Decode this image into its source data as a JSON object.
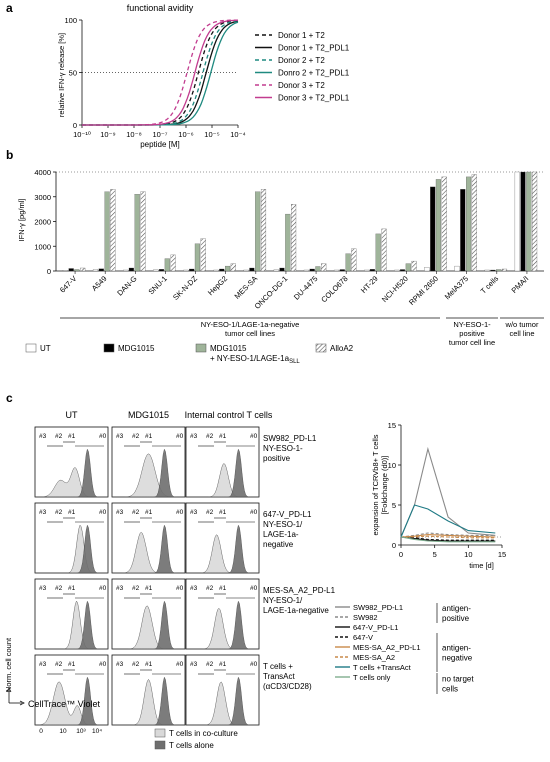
{
  "panel_a": {
    "panel_label": "a",
    "title": "functional avidity",
    "ylabel": "relative IFN-γ release [%]",
    "xlabel": "peptide [M]",
    "x_ticks": [
      "10⁻¹⁰",
      "10⁻⁹",
      "10⁻⁸",
      "10⁻⁷",
      "10⁻⁶",
      "10⁻⁵",
      "10⁻⁴"
    ],
    "y_ticks": [
      "0",
      "50",
      "100"
    ],
    "legend": [
      {
        "label": "Donor 1 + T2",
        "color": "#111111",
        "dash": "4,3"
      },
      {
        "label": "Donor 1 + T2_PDL1",
        "color": "#111111",
        "dash": ""
      },
      {
        "label": "Donor 2 + T2",
        "color": "#1f8a80",
        "dash": "4,3"
      },
      {
        "label": "Donro 2 + T2_PDL1",
        "color": "#1f8a80",
        "dash": ""
      },
      {
        "label": "Donor 3 + T2",
        "color": "#c23c8f",
        "dash": "4,3"
      },
      {
        "label": "Donor 3 + T2_PDL1",
        "color": "#c23c8f",
        "dash": ""
      }
    ]
  },
  "chart_data": [
    {
      "type": "line",
      "title": "functional avidity",
      "xlabel": "peptide [M]",
      "ylabel": "relative IFN-γ release [%]",
      "x_scale": "log",
      "xlim": [
        1e-10,
        0.0001
      ],
      "ylim": [
        0,
        100
      ],
      "reference_line_y": 50,
      "series": [
        {
          "name": "Donor 1 + T2",
          "ec50": 3e-06,
          "hill": 1.6
        },
        {
          "name": "Donor 1 + T2_PDL1",
          "ec50": 6e-06,
          "hill": 1.6
        },
        {
          "name": "Donor 2 + T2",
          "ec50": 4.5e-06,
          "hill": 1.6
        },
        {
          "name": "Donro 2 + T2_PDL1",
          "ec50": 9e-06,
          "hill": 1.6
        },
        {
          "name": "Donor 3 + T2",
          "ec50": 1.1e-06,
          "hill": 1.6
        },
        {
          "name": "Donor 3 + T2_PDL1",
          "ec50": 2.2e-06,
          "hill": 1.6
        }
      ]
    },
    {
      "type": "bar",
      "ylabel": "IFN-γ [pg/ml]",
      "ylim": [
        0,
        4000
      ],
      "y_ticks": [
        0,
        1000,
        2000,
        3000,
        4000
      ],
      "series_names": [
        "UT",
        "MDG1015",
        "MDG1015 + NY-ESO-1/LAGE-1a SLL",
        "AlloA2"
      ],
      "categories": [
        "647-V",
        "A549",
        "DAN-G",
        "SNU-1",
        "SK-N-DZ",
        "HepG2",
        "MES-SA",
        "ONCO-DG-1",
        "DU-4475",
        "COLO678",
        "HT-29",
        "NCI-H520",
        "RPMI 2650",
        "MelA375",
        "T cells",
        "PMA/I"
      ],
      "values": [
        [
          30,
          100,
          60,
          120
        ],
        [
          60,
          90,
          3200,
          3300
        ],
        [
          40,
          120,
          3100,
          3200
        ],
        [
          50,
          70,
          500,
          650
        ],
        [
          40,
          80,
          1100,
          1300
        ],
        [
          40,
          80,
          200,
          300
        ],
        [
          40,
          120,
          3200,
          3300
        ],
        [
          50,
          120,
          2300,
          2700
        ],
        [
          40,
          80,
          180,
          300
        ],
        [
          40,
          60,
          700,
          900
        ],
        [
          40,
          70,
          1500,
          1700
        ],
        [
          40,
          60,
          300,
          400
        ],
        [
          150,
          3400,
          3700,
          3800
        ],
        [
          200,
          3300,
          3800,
          3900
        ],
        [
          40,
          40,
          60,
          80
        ],
        [
          4000,
          4000,
          4000,
          4000
        ]
      ]
    },
    {
      "type": "line",
      "xlabel": "time [d]",
      "ylabel": "expansion of TCRVb8+ T cells [Foldchange (d0)]",
      "x_ticks": [
        0,
        5,
        10,
        15
      ],
      "y_ticks": [
        0,
        5,
        10,
        15
      ],
      "series": [
        {
          "name": "SW982_PD-L1",
          "x": [
            0,
            2,
            4,
            7,
            10,
            14
          ],
          "y": [
            1,
            5,
            12,
            3.5,
            1.5,
            1.2
          ]
        },
        {
          "name": "SW982",
          "x": [
            0,
            2,
            4,
            7,
            10,
            14
          ],
          "y": [
            1,
            1.2,
            1.5,
            1.3,
            1.2,
            1.2
          ]
        },
        {
          "name": "647-V_PD-L1",
          "x": [
            0,
            2,
            4,
            7,
            10,
            14
          ],
          "y": [
            1,
            0.8,
            0.6,
            0.5,
            0.5,
            0.5
          ]
        },
        {
          "name": "647-V",
          "x": [
            0,
            2,
            4,
            7,
            10,
            14
          ],
          "y": [
            1,
            0.9,
            0.7,
            0.6,
            0.6,
            0.6
          ]
        },
        {
          "name": "MES-SA_A2_PD-L1",
          "x": [
            0,
            2,
            4,
            7,
            10,
            14
          ],
          "y": [
            1,
            1.1,
            1.3,
            1.2,
            1.1,
            1.0
          ]
        },
        {
          "name": "MES-SA_A2",
          "x": [
            0,
            2,
            4,
            7,
            10,
            14
          ],
          "y": [
            1,
            1.0,
            1.1,
            1.0,
            0.9,
            0.9
          ]
        },
        {
          "name": "T cells +TransAct",
          "x": [
            0,
            2,
            4,
            7,
            10,
            14
          ],
          "y": [
            1,
            5,
            4.5,
            3,
            1.8,
            1.5
          ]
        },
        {
          "name": "T cells only",
          "x": [
            0,
            2,
            4,
            7,
            10,
            14
          ],
          "y": [
            1,
            0.7,
            0.5,
            0.4,
            0.4,
            0.4
          ]
        }
      ]
    }
  ],
  "panel_b": {
    "panel_label": "b",
    "ylabel": "IFN-γ [pg/ml]",
    "groups": [
      {
        "label": "NY-ESO-1/LAGE-1a-negative tumor cell lines",
        "lines": [
          "NY-ESO-1/LAGE-1a-negative",
          "tumor cell lines"
        ]
      },
      {
        "label": "NY-ESO-1-positive tumor cell line",
        "lines": [
          "NY-ESO-1-",
          "positive",
          "tumor cell line"
        ]
      },
      {
        "label": "w/o tumor cell line",
        "lines": [
          "w/o tumor",
          "cell line"
        ]
      }
    ],
    "legend": [
      {
        "label": "UT",
        "fill": "#ffffff"
      },
      {
        "label": "MDG1015",
        "fill": "#000000"
      },
      {
        "label": "MDG1015",
        "label2": "+ NY-ESO-1/LAGE-1a",
        "sub": "SLL",
        "fill": "#9fb49a"
      },
      {
        "label": "AlloA2",
        "fill": "hatch"
      }
    ],
    "colors": {
      "ut": "#ffffff",
      "mdg": "#000000",
      "peptide": "#9fb49a",
      "allo": "#cfcfcf"
    }
  },
  "panel_c": {
    "panel_label": "c",
    "col_headers": [
      "UT",
      "MDG1015",
      "Internal control T cells"
    ],
    "row_labels": [
      [
        "SW982_PD-L1",
        "NY-ESO-1-",
        "positive"
      ],
      [
        "647-V_PD-L1",
        "NY-ESO-1/",
        "LAGE-1a-",
        "negative"
      ],
      [
        "MES-SA_A2_PD-L1",
        "NY-ESO-1/",
        "LAGE-1a-negative"
      ],
      [
        "T cells +",
        "TransAct",
        "(αCD3/CD28)"
      ]
    ],
    "gate_labels": [
      "#3",
      "#2",
      "#1",
      "#0"
    ],
    "hist_x_ticks": [
      "0",
      "10",
      "10³",
      "10⁴"
    ],
    "y_axis_label": "Norm. cell count",
    "x_axis_label": "CellTrace™ Violet",
    "hist_legend": [
      {
        "label": "T cells in co-culture",
        "fill": "#d9d9d9"
      },
      {
        "label": "T cells alone",
        "fill": "#6e6e6e"
      }
    ],
    "expansion": {
      "ylabel": "expansion of TCRVb8+ T cells",
      "ylabel2": "[Foldchange (d0)]",
      "xlabel": "time [d]",
      "x_ticks": [
        "0",
        "5",
        "10",
        "15"
      ],
      "y_ticks": [
        "0",
        "5",
        "10",
        "15"
      ]
    },
    "legend": [
      {
        "label": "SW982_PD-L1",
        "color": "#8a8a8a",
        "dash": ""
      },
      {
        "label": "SW982",
        "color": "#8a8a8a",
        "dash": "3,2"
      },
      {
        "label": "647-V_PD-L1",
        "color": "#111111",
        "dash": ""
      },
      {
        "label": "647-V",
        "color": "#111111",
        "dash": "3,2"
      },
      {
        "label": "MES-SA_A2_PD-L1",
        "color": "#c98a4a",
        "dash": ""
      },
      {
        "label": "MES-SA_A2",
        "color": "#c98a4a",
        "dash": "3,2"
      },
      {
        "label": "T cells +TransAct",
        "color": "#1f7a85",
        "dash": ""
      },
      {
        "label": "T cells only",
        "color": "#7fae8f",
        "dash": ""
      }
    ],
    "legend_groups": [
      {
        "lines": [
          "antigen-",
          "positive"
        ]
      },
      {
        "lines": [
          "antigen-",
          "negative"
        ]
      },
      {
        "lines": [
          "no target",
          "cells"
        ]
      }
    ]
  }
}
